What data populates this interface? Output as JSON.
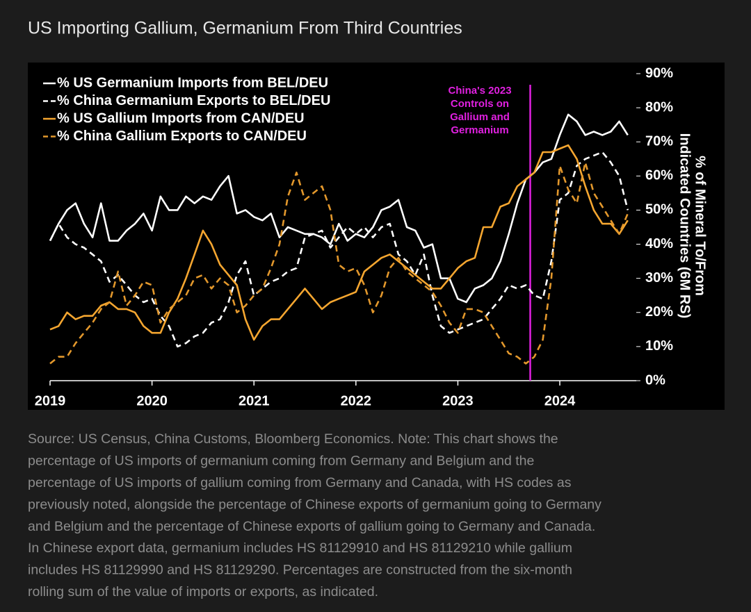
{
  "chart_data": {
    "type": "line",
    "title": "US Importing Gallium, Germanium From Third Countries",
    "y_label": [
      "% of Mineral To/From",
      "Indicated Countries (6M RS)"
    ],
    "x": [
      2019,
      2019.083,
      2019.167,
      2019.25,
      2019.333,
      2019.417,
      2019.5,
      2019.583,
      2019.667,
      2019.75,
      2019.833,
      2019.917,
      2020,
      2020.083,
      2020.167,
      2020.25,
      2020.333,
      2020.417,
      2020.5,
      2020.583,
      2020.667,
      2020.75,
      2020.833,
      2020.917,
      2021,
      2021.083,
      2021.167,
      2021.25,
      2021.333,
      2021.417,
      2021.5,
      2021.583,
      2021.667,
      2021.75,
      2021.833,
      2021.917,
      2022,
      2022.083,
      2022.167,
      2022.25,
      2022.333,
      2022.417,
      2022.5,
      2022.583,
      2022.667,
      2022.75,
      2022.833,
      2022.917,
      2023,
      2023.083,
      2023.167,
      2023.25,
      2023.333,
      2023.417,
      2023.5,
      2023.583,
      2023.667,
      2023.75,
      2023.833,
      2023.917,
      2024,
      2024.083,
      2024.167,
      2024.25,
      2024.333,
      2024.417,
      2024.5,
      2024.583,
      2024.667
    ],
    "xlim": [
      2019,
      2024.75
    ],
    "xticks": [
      2019,
      2020,
      2021,
      2022,
      2023,
      2024
    ],
    "ylim": [
      0,
      90
    ],
    "yticks": [
      {
        "value": 0,
        "label": "0%"
      },
      {
        "value": 10,
        "label": "10%"
      },
      {
        "value": 20,
        "label": "20%"
      },
      {
        "value": 30,
        "label": "30%"
      },
      {
        "value": 40,
        "label": "40%"
      },
      {
        "value": 50,
        "label": "50%"
      },
      {
        "value": 60,
        "label": "60%"
      },
      {
        "value": 70,
        "label": "70%"
      },
      {
        "value": 80,
        "label": "80%"
      },
      {
        "value": 90,
        "label": "90%"
      }
    ],
    "legend": "upper left",
    "series": [
      {
        "name": "% US Germanium Imports from BEL/DEU",
        "color": "#ffffff",
        "dashed": false,
        "values": [
          41,
          46,
          50,
          52,
          46,
          42,
          52,
          41,
          41,
          44,
          46,
          49,
          44,
          54,
          50,
          50,
          54,
          52,
          54,
          53,
          57,
          60,
          49,
          50,
          48,
          47,
          49,
          42,
          45,
          44,
          43,
          43,
          42,
          40,
          46,
          41,
          43,
          42,
          45,
          50,
          51,
          53,
          45,
          44,
          39,
          40,
          30,
          30,
          24,
          23,
          27,
          28,
          30,
          35,
          43,
          52,
          59,
          61,
          64,
          65,
          72,
          78,
          76,
          72,
          73,
          72,
          73,
          76,
          72
        ]
      },
      {
        "name": "% China Germanium Exports to BEL/DEU",
        "color": "#ffffff",
        "dashed": true,
        "values": [
          41,
          46,
          42,
          40,
          39,
          37,
          35,
          29,
          31,
          28,
          25,
          23,
          24,
          19,
          16,
          10,
          11,
          13,
          14,
          17,
          18,
          23,
          31,
          35,
          25,
          27,
          29,
          30,
          32,
          33,
          42,
          43,
          44,
          39,
          42,
          45,
          43,
          45,
          42,
          45,
          46,
          37,
          35,
          31,
          37,
          25,
          16,
          14,
          15,
          16,
          17,
          18,
          21,
          24,
          28,
          27,
          28,
          25,
          24,
          35,
          53,
          55,
          63,
          65,
          66,
          67,
          64,
          60,
          50
        ]
      },
      {
        "name": "% US Gallium Imports from CAN/DEU",
        "color": "#f5a630",
        "dashed": false,
        "values": [
          15,
          16,
          20,
          18,
          19,
          19,
          22,
          23,
          21,
          21,
          20,
          16,
          14,
          14,
          20,
          24,
          30,
          37,
          44,
          40,
          34,
          31,
          28,
          18,
          12,
          16,
          18,
          18,
          21,
          24,
          27,
          24,
          21,
          23,
          24,
          25,
          26,
          32,
          34,
          36,
          37,
          35,
          33,
          31,
          29,
          27,
          27,
          30,
          33,
          35,
          36,
          45,
          45,
          51,
          52,
          57,
          59,
          61,
          67,
          67,
          68,
          69,
          65,
          57,
          50,
          46,
          46,
          43,
          47
        ]
      },
      {
        "name": "% China Gallium Exports to CAN/DEU",
        "color": "#e3982c",
        "dashed": true,
        "values": [
          5,
          7,
          7,
          11,
          14,
          17,
          21,
          23,
          32,
          22,
          25,
          29,
          28,
          17,
          21,
          23,
          25,
          30,
          31,
          27,
          30,
          28,
          20,
          22,
          25,
          27,
          33,
          40,
          54,
          61,
          53,
          55,
          57,
          50,
          34,
          32,
          33,
          28,
          20,
          25,
          33,
          36,
          32,
          30,
          28,
          26,
          22,
          17,
          14,
          21,
          21,
          20,
          16,
          12,
          8,
          7,
          5,
          7,
          12,
          30,
          63,
          56,
          52,
          64,
          55,
          51,
          47,
          43,
          49
        ]
      }
    ],
    "vline": {
      "x": 2023.71,
      "color": "#e020e0",
      "label": [
        "China's 2023",
        "Controls on",
        "Gallium and",
        "Germanium"
      ]
    }
  },
  "source_note": [
    "Source: US Census, China Customs, Bloomberg Economics. Note: This chart shows the",
    "percentage of US imports of germanium coming from Germany and Belgium and the",
    "percentage of US imports of gallium coming from Germany and Canada, with HS codes as",
    "previously noted, alongside the percentage of Chinese exports of germanium going to Germany",
    "and Belgium and the percentage of Chinese exports of gallium going to Germany and Canada.",
    "In Chinese export data, germanium includes HS 81129910 and HS 81129210 while gallium",
    "includes HS 81129990 and HS 81129290. Percentages are constructed from the six-month",
    "rolling sum of the value of imports or exports, as indicated."
  ]
}
